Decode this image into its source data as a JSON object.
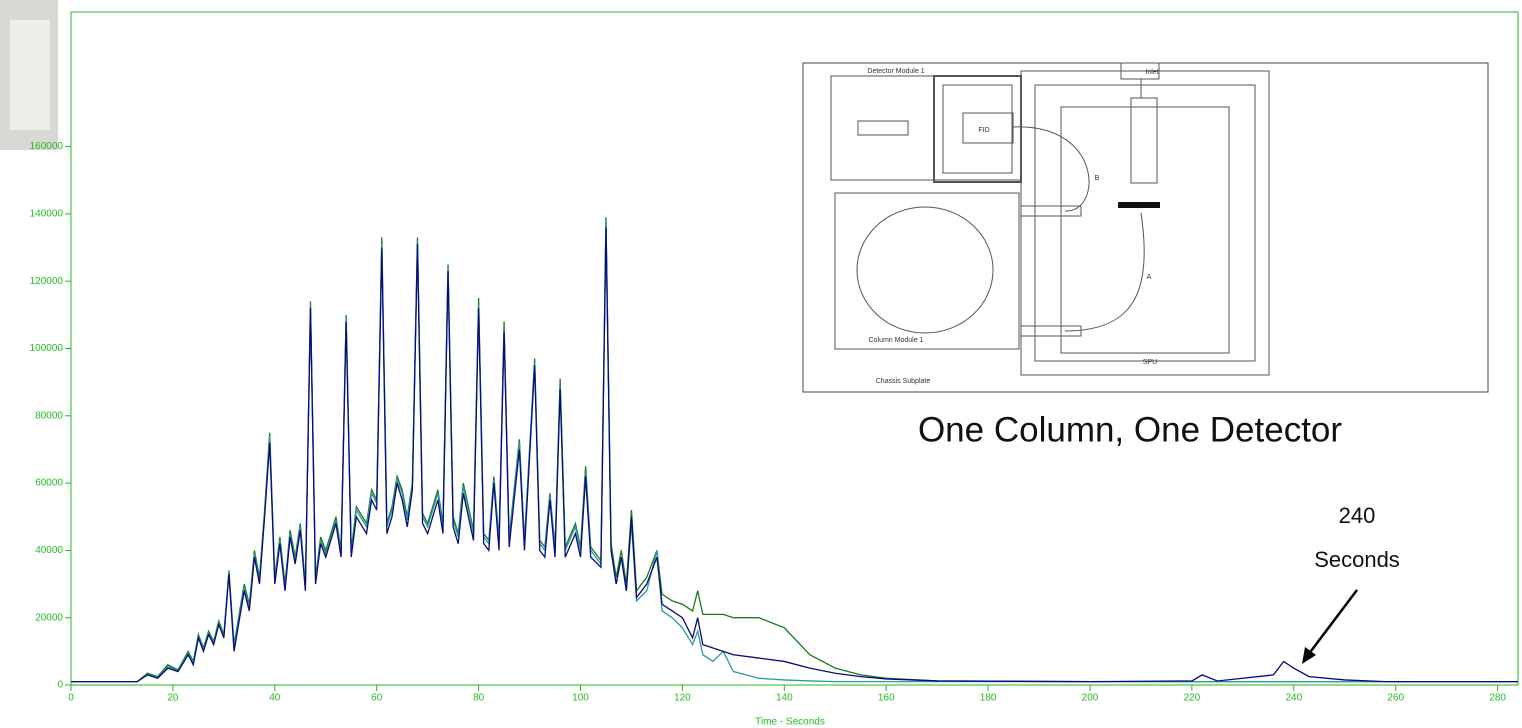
{
  "chart_data": {
    "type": "line",
    "x_label": "Time - Seconds",
    "xlim": [
      0,
      284
    ],
    "xticks": [
      0,
      20,
      40,
      60,
      80,
      100,
      120,
      140,
      160,
      180,
      200,
      220,
      240,
      260,
      280
    ],
    "ylim": [
      0,
      200000
    ],
    "yticks": [
      0,
      20000,
      40000,
      60000,
      80000,
      100000,
      120000,
      140000,
      160000
    ],
    "axis_color": "#22bb22",
    "x": [
      0,
      13,
      15,
      17,
      19,
      21,
      23,
      24,
      25,
      26,
      27,
      28,
      29,
      30,
      31,
      32,
      34,
      35,
      36,
      37,
      38,
      39,
      40,
      41,
      42,
      43,
      44,
      45,
      46,
      47,
      48,
      49,
      50,
      52,
      53,
      54,
      55,
      56,
      58,
      59,
      60,
      61,
      62,
      63,
      64,
      65,
      66,
      67,
      68,
      69,
      70,
      72,
      73,
      74,
      75,
      76,
      77,
      78,
      79,
      80,
      81,
      82,
      83,
      84,
      85,
      86,
      88,
      89,
      91,
      92,
      93,
      94,
      95,
      96,
      97,
      99,
      100,
      101,
      102,
      104,
      105,
      106,
      107,
      108,
      109,
      110,
      111,
      113,
      115,
      116,
      118,
      120,
      122,
      123,
      124,
      126,
      128,
      130,
      135,
      140,
      145,
      150,
      155,
      160,
      170,
      200,
      220,
      222,
      225,
      236,
      238,
      240,
      243,
      250,
      258,
      284
    ],
    "series": [
      {
        "color": "#1a7a1a",
        "values": [
          1000,
          1000,
          3500,
          2500,
          6000,
          4500,
          10000,
          7000,
          15000,
          11000,
          16000,
          13000,
          19000,
          15000,
          34000,
          12000,
          30000,
          24000,
          40000,
          32000,
          52000,
          75000,
          32000,
          44000,
          30000,
          46000,
          38000,
          48000,
          30000,
          114000,
          32000,
          44000,
          40000,
          50000,
          40000,
          110000,
          40000,
          53000,
          48000,
          58000,
          55000,
          133000,
          48000,
          53000,
          62000,
          58000,
          50000,
          60000,
          133000,
          51000,
          48000,
          58000,
          48000,
          125000,
          50000,
          45000,
          60000,
          53000,
          46000,
          115000,
          45000,
          43000,
          62000,
          43000,
          108000,
          44000,
          73000,
          43000,
          97000,
          43000,
          41000,
          57000,
          41000,
          91000,
          41000,
          48000,
          41000,
          65000,
          41000,
          37000,
          139000,
          42000,
          32000,
          40000,
          30000,
          52000,
          28000,
          32000,
          40000,
          27000,
          25000,
          24000,
          22000,
          28000,
          21000,
          21000,
          21000,
          20000,
          20000,
          17000,
          9000,
          5000,
          3000,
          2000,
          1200,
          1000,
          1000,
          1000,
          1000,
          1000,
          1000,
          1000,
          1000,
          1000,
          1000,
          1000
        ]
      },
      {
        "color": "#2a9a9a",
        "values": [
          1000,
          1000,
          3200,
          2200,
          5500,
          4200,
          9500,
          6500,
          14500,
          10500,
          15500,
          12500,
          18500,
          14500,
          33500,
          11000,
          29000,
          23000,
          39000,
          31000,
          51000,
          74000,
          31000,
          43000,
          29000,
          45000,
          37000,
          47000,
          29000,
          113000,
          31000,
          43000,
          39000,
          49000,
          39000,
          109000,
          39000,
          52000,
          47000,
          57000,
          54000,
          131000,
          47000,
          52000,
          61000,
          57000,
          49000,
          59000,
          132000,
          50000,
          47000,
          57000,
          47000,
          124000,
          49000,
          44000,
          59000,
          52000,
          45000,
          113000,
          44000,
          42000,
          61000,
          42000,
          106000,
          43000,
          72000,
          42000,
          96000,
          42000,
          40000,
          56000,
          40000,
          89000,
          40000,
          47000,
          40000,
          63000,
          40000,
          36000,
          138000,
          40000,
          30000,
          38000,
          28000,
          48000,
          25000,
          28000,
          40000,
          22000,
          20000,
          17000,
          12000,
          16000,
          9000,
          7000,
          10000,
          4000,
          2000,
          1500,
          1200,
          1000,
          1000,
          1000,
          1000,
          1000,
          1000,
          1000,
          1000,
          1000,
          1000,
          1000,
          1000,
          1000,
          1000,
          1000
        ]
      },
      {
        "color": "#0a0a80",
        "values": [
          1000,
          1000,
          3000,
          2000,
          5000,
          4000,
          9000,
          6000,
          14000,
          10000,
          15000,
          12000,
          18000,
          14000,
          33000,
          10000,
          28000,
          22000,
          38000,
          30000,
          50000,
          72000,
          30000,
          42000,
          28000,
          44000,
          36000,
          46000,
          28000,
          112000,
          30000,
          42000,
          38000,
          48000,
          38000,
          108000,
          38000,
          50000,
          45000,
          55000,
          52000,
          130000,
          45000,
          50000,
          60000,
          55000,
          47000,
          58000,
          131000,
          48000,
          45000,
          55000,
          45000,
          123000,
          47000,
          42000,
          57000,
          50000,
          43000,
          112000,
          42000,
          40000,
          60000,
          40000,
          105000,
          41000,
          70000,
          40000,
          95000,
          40000,
          38000,
          55000,
          38000,
          88000,
          38000,
          45000,
          38000,
          62000,
          38000,
          35000,
          136000,
          40000,
          30000,
          38000,
          28000,
          50000,
          26000,
          30000,
          38000,
          24000,
          22000,
          20000,
          14000,
          20000,
          12000,
          11000,
          10000,
          9000,
          8000,
          7000,
          5000,
          3500,
          2500,
          1800,
          1200,
          1000,
          1200,
          3000,
          1200,
          3000,
          7000,
          5000,
          2500,
          1500,
          1000,
          1000
        ]
      }
    ],
    "annotation": [
      "240",
      "Seconds"
    ],
    "inset": {
      "caption": "One Column, One Detector",
      "labels": [
        "Inlet",
        "Detector Module 1",
        "FID",
        "B",
        "A",
        "Column Module 1",
        "SPU",
        "Chassis Subplate"
      ]
    }
  }
}
